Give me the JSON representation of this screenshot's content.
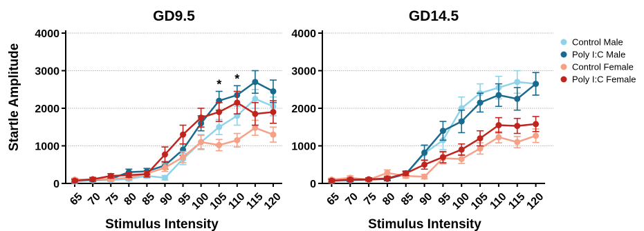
{
  "figure": {
    "ylabel": "Startle Amplitude",
    "xlabel": "Stimulus Intensity"
  },
  "legend": [
    {
      "name": "Control Male",
      "color": "#8fd3ea"
    },
    {
      "name": "Poly I:C Male",
      "color": "#1a6a8e"
    },
    {
      "name": "Control Female",
      "color": "#f6a187"
    },
    {
      "name": "Poly I:C Female",
      "color": "#c0241e"
    }
  ],
  "chart_data": [
    {
      "type": "line",
      "title": "GD9.5",
      "xlabel": "Stimulus Intensity",
      "ylabel": "Startle Amplitude",
      "categories": [
        "65",
        "70",
        "75",
        "80",
        "85",
        "90",
        "95",
        "100",
        "105",
        "110",
        "115",
        "120"
      ],
      "ylim": [
        0,
        4000
      ],
      "yticks": [
        0,
        1000,
        2000,
        3000,
        4000
      ],
      "grid": true,
      "annotations": [
        {
          "text": "*",
          "x": "105"
        },
        {
          "text": "*",
          "x": "110"
        }
      ],
      "series": [
        {
          "name": "Control Male",
          "color": "#8fd3ea",
          "values": [
            50,
            80,
            90,
            120,
            200,
            150,
            650,
            1100,
            1500,
            1800,
            2250,
            2050
          ],
          "errors": [
            40,
            40,
            40,
            50,
            60,
            60,
            150,
            200,
            200,
            250,
            250,
            250
          ]
        },
        {
          "name": "Poly I:C Male",
          "color": "#1a6a8e",
          "values": [
            80,
            100,
            120,
            300,
            320,
            480,
            900,
            1600,
            2200,
            2350,
            2700,
            2450
          ],
          "errors": [
            40,
            40,
            50,
            80,
            80,
            100,
            150,
            200,
            250,
            250,
            300,
            300
          ]
        },
        {
          "name": "Control Female",
          "color": "#f6a187",
          "values": [
            100,
            110,
            120,
            150,
            260,
            420,
            700,
            1100,
            1020,
            1150,
            1480,
            1300
          ],
          "errors": [
            40,
            40,
            50,
            50,
            60,
            100,
            150,
            180,
            150,
            180,
            200,
            200
          ]
        },
        {
          "name": "Poly I:C Female",
          "color": "#c0241e",
          "values": [
            70,
            110,
            200,
            220,
            250,
            770,
            1300,
            1750,
            1900,
            2150,
            1850,
            1900
          ],
          "errors": [
            40,
            50,
            60,
            60,
            80,
            200,
            250,
            250,
            250,
            300,
            300,
            300
          ]
        }
      ]
    },
    {
      "type": "line",
      "title": "GD14.5",
      "xlabel": "Stimulus Intensity",
      "ylabel": "Startle Amplitude",
      "categories": [
        "65",
        "70",
        "75",
        "80",
        "85",
        "90",
        "95",
        "100",
        "105",
        "110",
        "115",
        "120"
      ],
      "ylim": [
        0,
        4000
      ],
      "yticks": [
        0,
        1000,
        2000,
        3000,
        4000
      ],
      "grid": true,
      "series": [
        {
          "name": "Control Male",
          "color": "#8fd3ea",
          "values": [
            60,
            80,
            90,
            150,
            250,
            800,
            1150,
            2000,
            2400,
            2550,
            2700,
            2650
          ],
          "errors": [
            40,
            40,
            40,
            50,
            60,
            200,
            250,
            300,
            250,
            300,
            300,
            300
          ]
        },
        {
          "name": "Poly I:C Male",
          "color": "#1a6a8e",
          "values": [
            80,
            90,
            100,
            120,
            250,
            820,
            1400,
            1650,
            2150,
            2350,
            2250,
            2650
          ],
          "errors": [
            40,
            40,
            40,
            50,
            60,
            200,
            250,
            300,
            250,
            300,
            300,
            300
          ]
        },
        {
          "name": "Control Female",
          "color": "#f6a187",
          "values": [
            100,
            150,
            100,
            280,
            200,
            180,
            670,
            650,
            930,
            1230,
            1100,
            1270
          ],
          "errors": [
            40,
            50,
            40,
            80,
            60,
            60,
            150,
            120,
            150,
            150,
            150,
            180
          ]
        },
        {
          "name": "Poly I:C Female",
          "color": "#c0241e",
          "values": [
            70,
            100,
            110,
            130,
            270,
            500,
            700,
            900,
            1200,
            1550,
            1530,
            1580
          ],
          "errors": [
            40,
            40,
            40,
            50,
            60,
            120,
            150,
            150,
            200,
            200,
            200,
            200
          ]
        }
      ]
    }
  ]
}
